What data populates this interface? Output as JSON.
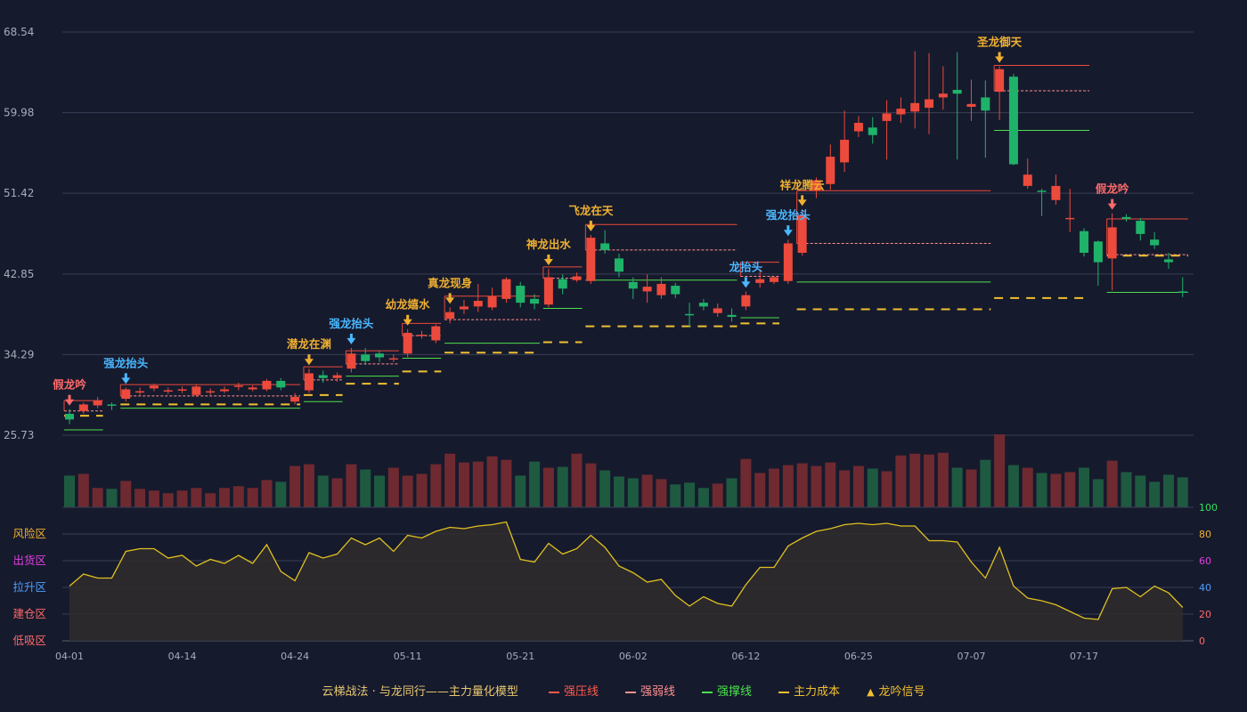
{
  "chart_data": {
    "type": "candlestick",
    "y_ticks": [
      "68.54",
      "59.98",
      "51.42",
      "42.85",
      "34.29",
      "25.73"
    ],
    "ylim": [
      25.73,
      68.54
    ],
    "x_tick_labels": [
      "04-01",
      "04-14",
      "04-24",
      "05-11",
      "05-21",
      "06-02",
      "06-12",
      "06-25",
      "07-07",
      "07-17"
    ],
    "x_tick_index": [
      0,
      8,
      16,
      24,
      32,
      40,
      48,
      56,
      64,
      72
    ],
    "candles": [
      [
        28.0,
        27.4,
        26.9,
        28.5
      ],
      [
        28.3,
        29.0,
        28.0,
        29.2
      ],
      [
        28.9,
        29.4,
        28.6,
        29.8
      ],
      [
        29.0,
        28.9,
        28.4,
        29.2
      ],
      [
        29.6,
        30.6,
        29.3,
        30.8
      ],
      [
        30.3,
        30.4,
        30.0,
        30.8
      ],
      [
        30.7,
        31.0,
        30.4,
        31.2
      ],
      [
        30.4,
        30.5,
        30.1,
        30.8
      ],
      [
        30.5,
        30.6,
        30.2,
        30.9
      ],
      [
        30.0,
        30.9,
        29.8,
        31.1
      ],
      [
        30.3,
        30.4,
        30.0,
        30.7
      ],
      [
        30.4,
        30.6,
        30.2,
        30.9
      ],
      [
        30.9,
        31.0,
        30.5,
        31.3
      ],
      [
        30.6,
        30.8,
        30.4,
        31.0
      ],
      [
        30.6,
        31.5,
        30.4,
        31.7
      ],
      [
        31.5,
        30.8,
        30.5,
        31.8
      ],
      [
        29.3,
        29.8,
        29.0,
        30.2
      ],
      [
        30.5,
        32.3,
        30.2,
        32.8
      ],
      [
        32.1,
        31.8,
        31.3,
        32.6
      ],
      [
        31.8,
        32.1,
        31.4,
        32.4
      ],
      [
        32.8,
        34.4,
        32.4,
        35.0
      ],
      [
        34.3,
        33.6,
        33.2,
        35.0
      ],
      [
        34.4,
        34.0,
        33.5,
        34.7
      ],
      [
        33.8,
        33.9,
        33.5,
        34.3
      ],
      [
        34.4,
        36.6,
        34.0,
        37.0
      ],
      [
        36.3,
        36.4,
        36.0,
        36.8
      ],
      [
        35.8,
        37.3,
        35.5,
        37.5
      ],
      [
        38.1,
        38.8,
        37.6,
        39.3
      ],
      [
        39.1,
        39.4,
        38.6,
        40.1
      ],
      [
        39.4,
        40.0,
        38.8,
        41.8
      ],
      [
        39.3,
        40.5,
        39.0,
        41.4
      ],
      [
        40.2,
        42.3,
        39.8,
        42.5
      ],
      [
        41.6,
        39.8,
        39.3,
        42.0
      ],
      [
        40.2,
        39.7,
        39.1,
        40.7
      ],
      [
        39.6,
        42.5,
        39.3,
        43.4
      ],
      [
        42.3,
        41.3,
        40.7,
        42.8
      ],
      [
        42.2,
        42.6,
        42.0,
        43.0
      ],
      [
        42.1,
        46.7,
        41.8,
        47.0
      ],
      [
        46.1,
        45.4,
        45.0,
        47.5
      ],
      [
        44.5,
        43.1,
        42.5,
        45.0
      ],
      [
        42.0,
        41.3,
        40.2,
        42.5
      ],
      [
        41.0,
        41.5,
        39.8,
        42.8
      ],
      [
        40.6,
        41.8,
        40.2,
        42.5
      ],
      [
        41.6,
        40.7,
        40.3,
        41.9
      ],
      [
        38.6,
        38.5,
        37.2,
        39.8
      ],
      [
        39.8,
        39.4,
        39.0,
        40.2
      ],
      [
        38.7,
        39.2,
        38.3,
        39.7
      ],
      [
        38.5,
        38.3,
        37.8,
        39.2
      ],
      [
        39.4,
        40.6,
        39.0,
        41.0
      ],
      [
        41.9,
        42.3,
        41.4,
        43.4
      ],
      [
        42.0,
        42.5,
        41.8,
        42.6
      ],
      [
        42.1,
        46.1,
        41.8,
        46.5
      ],
      [
        45.1,
        49.1,
        44.8,
        49.7
      ],
      [
        51.7,
        52.8,
        50.9,
        53.1
      ],
      [
        52.4,
        55.3,
        51.8,
        56.6
      ],
      [
        54.7,
        57.1,
        53.7,
        60.2
      ],
      [
        58.0,
        58.9,
        57.4,
        59.6
      ],
      [
        58.4,
        57.6,
        56.7,
        59.5
      ],
      [
        59.1,
        59.9,
        55.0,
        61.3
      ],
      [
        59.8,
        60.4,
        58.9,
        61.6
      ],
      [
        60.1,
        61.0,
        58.3,
        66.5
      ],
      [
        60.5,
        61.4,
        57.7,
        66.3
      ],
      [
        61.6,
        62.0,
        60.3,
        64.9
      ],
      [
        62.4,
        62.0,
        55.0,
        66.4
      ],
      [
        60.6,
        60.9,
        59.1,
        63.5
      ],
      [
        61.6,
        60.2,
        55.2,
        63.4
      ],
      [
        62.2,
        64.6,
        59.2,
        64.9
      ],
      [
        63.8,
        54.5,
        54.4,
        64.1
      ],
      [
        52.2,
        53.4,
        51.9,
        55.1
      ],
      [
        51.7,
        51.6,
        49.0,
        51.9
      ],
      [
        50.7,
        52.2,
        50.2,
        53.4
      ],
      [
        48.8,
        48.8,
        47.3,
        51.9
      ],
      [
        47.4,
        45.1,
        44.7,
        47.7
      ],
      [
        46.3,
        44.1,
        41.6,
        46.4
      ],
      [
        44.5,
        47.8,
        41.1,
        49.3
      ],
      [
        48.9,
        48.7,
        48.4,
        49.2
      ],
      [
        48.5,
        47.1,
        46.4,
        48.8
      ],
      [
        46.5,
        45.9,
        45.5,
        47.3
      ],
      [
        44.4,
        44.1,
        43.4,
        45.1
      ],
      [
        41.0,
        40.9,
        40.4,
        42.5
      ]
    ],
    "volume": [
      36,
      38,
      22,
      21,
      30,
      21,
      19,
      16,
      19,
      22,
      16,
      22,
      24,
      22,
      31,
      29,
      47,
      49,
      36,
      33,
      49,
      43,
      36,
      45,
      36,
      38,
      49,
      61,
      51,
      52,
      58,
      54,
      36,
      52,
      45,
      46,
      61,
      50,
      42,
      35,
      33,
      37,
      32,
      26,
      28,
      22,
      27,
      33,
      55,
      39,
      44,
      48,
      50,
      47,
      51,
      42,
      47,
      44,
      41,
      59,
      61,
      60,
      62,
      45,
      43,
      54,
      83,
      48,
      45,
      39,
      38,
      40,
      45,
      32,
      53,
      40,
      36,
      29,
      37,
      34
    ],
    "model_line": [
      41,
      50,
      47,
      47,
      67,
      69,
      69,
      62,
      64,
      56,
      61,
      58,
      64,
      58,
      72,
      52,
      45,
      66,
      62,
      65,
      77,
      72,
      77,
      67,
      79,
      77,
      82,
      85,
      84,
      86,
      87,
      89,
      61,
      59,
      73,
      65,
      69,
      79,
      70,
      56,
      51,
      44,
      46,
      34,
      26,
      33,
      28,
      26,
      42,
      55,
      55,
      71,
      77,
      82,
      84,
      87,
      88,
      87,
      88,
      86,
      86,
      75,
      75,
      74,
      59,
      47,
      70,
      41,
      32,
      30,
      27,
      22,
      17,
      16,
      39,
      40,
      33,
      41,
      36,
      25
    ],
    "model_labels": [
      "风险区",
      "出货区",
      "拉升区",
      "建仓区",
      "低吸区"
    ],
    "model_label_colors": [
      "#f0b030",
      "#e040e0",
      "#4aa0ff",
      "#ff6a6a",
      "#ff6a6a"
    ],
    "model_ticks": [
      "100",
      "80",
      "60",
      "40",
      "20",
      "0"
    ],
    "model_tick_colors": [
      "#30e060",
      "#f0b030",
      "#e040e0",
      "#4aa0ff",
      "#ff6a6a",
      "#ff6a6a"
    ],
    "signals": [
      {
        "i": 0,
        "text": "假龙吟",
        "color": "#ff6a6a",
        "dir": "down",
        "arrow": "#ff6a6a"
      },
      {
        "i": 4,
        "text": "强龙抬头",
        "color": "#4ab8ff",
        "dir": "down",
        "arrow": "#4ab8ff"
      },
      {
        "i": 17,
        "text": "潜龙在渊",
        "color": "#f0b030",
        "dir": "down",
        "arrow": "#f0b030"
      },
      {
        "i": 20,
        "text": "强龙抬头",
        "color": "#4ab8ff",
        "dir": "down",
        "arrow": "#4ab8ff"
      },
      {
        "i": 24,
        "text": "幼龙嬉水",
        "color": "#f0b030",
        "dir": "down",
        "arrow": "#f0b030"
      },
      {
        "i": 27,
        "text": "真龙现身",
        "color": "#f0b030",
        "dir": "down",
        "arrow": "#f0b030"
      },
      {
        "i": 34,
        "text": "神龙出水",
        "color": "#f0b030",
        "dir": "down",
        "arrow": "#f0b030"
      },
      {
        "i": 37,
        "text": "飞龙在天",
        "color": "#f0b030",
        "dir": "down",
        "arrow": "#f0b030"
      },
      {
        "i": 48,
        "text": "龙抬头",
        "color": "#4ab8ff",
        "dir": "down",
        "arrow": "#4ab8ff"
      },
      {
        "i": 51,
        "text": "强龙抬头",
        "color": "#4ab8ff",
        "dir": "down",
        "arrow": "#4ab8ff"
      },
      {
        "i": 52,
        "text": "祥龙腾云",
        "color": "#f0b030",
        "dir": "down",
        "arrow": "#f0b030"
      },
      {
        "i": 66,
        "text": "圣龙御天",
        "color": "#f0b030",
        "dir": "down",
        "arrow": "#f0b030"
      },
      {
        "i": 74,
        "text": "假龙吟",
        "color": "#ff6a6a",
        "dir": "down",
        "arrow": "#ff6a6a"
      }
    ],
    "levels": [
      {
        "i0": 0,
        "i1": 2,
        "strong": 29.4,
        "weak": 28.3,
        "support": 26.3,
        "cost": 27.8
      },
      {
        "i0": 4,
        "i1": 16,
        "strong": 31.1,
        "weak": 29.9,
        "support": 28.6,
        "cost": 29.0
      },
      {
        "i0": 17,
        "i1": 19,
        "strong": 33.0,
        "weak": 31.6,
        "support": 29.3,
        "cost": 30.0
      },
      {
        "i0": 20,
        "i1": 23,
        "strong": 34.7,
        "weak": 33.3,
        "support": 32.0,
        "cost": 31.2
      },
      {
        "i0": 24,
        "i1": 26,
        "strong": 37.6,
        "weak": 36.3,
        "support": 33.9,
        "cost": 32.5
      },
      {
        "i0": 27,
        "i1": 33,
        "strong": 40.5,
        "weak": 38.0,
        "support": 35.5,
        "cost": 34.5
      },
      {
        "i0": 34,
        "i1": 36,
        "strong": 43.6,
        "weak": 42.4,
        "support": 39.2,
        "cost": 35.6
      },
      {
        "i0": 37,
        "i1": 47,
        "strong": 48.1,
        "weak": 45.4,
        "support": 42.2,
        "cost": 37.3
      },
      {
        "i0": 48,
        "i1": 50,
        "strong": 44.1,
        "weak": 42.6,
        "support": 38.2,
        "cost": 37.6
      },
      {
        "i0": 52,
        "i1": 65,
        "strong": 51.7,
        "weak": 46.1,
        "support": 42.0,
        "cost": 39.1
      },
      {
        "i0": 66,
        "i1": 72,
        "strong": 65.0,
        "weak": 62.3,
        "support": 58.1,
        "cost": 40.3
      },
      {
        "i0": 74,
        "i1": 79,
        "strong": 48.7,
        "weak": 44.9,
        "support": 40.9,
        "cost": 44.8
      }
    ],
    "colors": {
      "up": "#ec4a3c",
      "down": "#1fb36a",
      "vol_up": "#6e2a30",
      "vol_down": "#1e5a40",
      "strong": "#ec4a3c",
      "weak": "#ff9090",
      "support": "#4ce04c",
      "cost": "#f0c030",
      "model_line": "#e0c020",
      "grid": "#3a3f55",
      "axis_text": "#a8acb8"
    }
  },
  "legend": {
    "title": "云梯战法 · 与龙同行——主力量化模型",
    "items": [
      {
        "label": "强压线",
        "color": "#ff5a4a",
        "style": "solid"
      },
      {
        "label": "强弱线",
        "color": "#ff9090",
        "style": "dashed"
      },
      {
        "label": "强撑线",
        "color": "#4ce04c",
        "style": "solid"
      },
      {
        "label": "主力成本",
        "color": "#f0c030",
        "style": "dashed"
      },
      {
        "label": "龙吟信号",
        "color": "#f0c030",
        "style": "triangle"
      }
    ]
  }
}
